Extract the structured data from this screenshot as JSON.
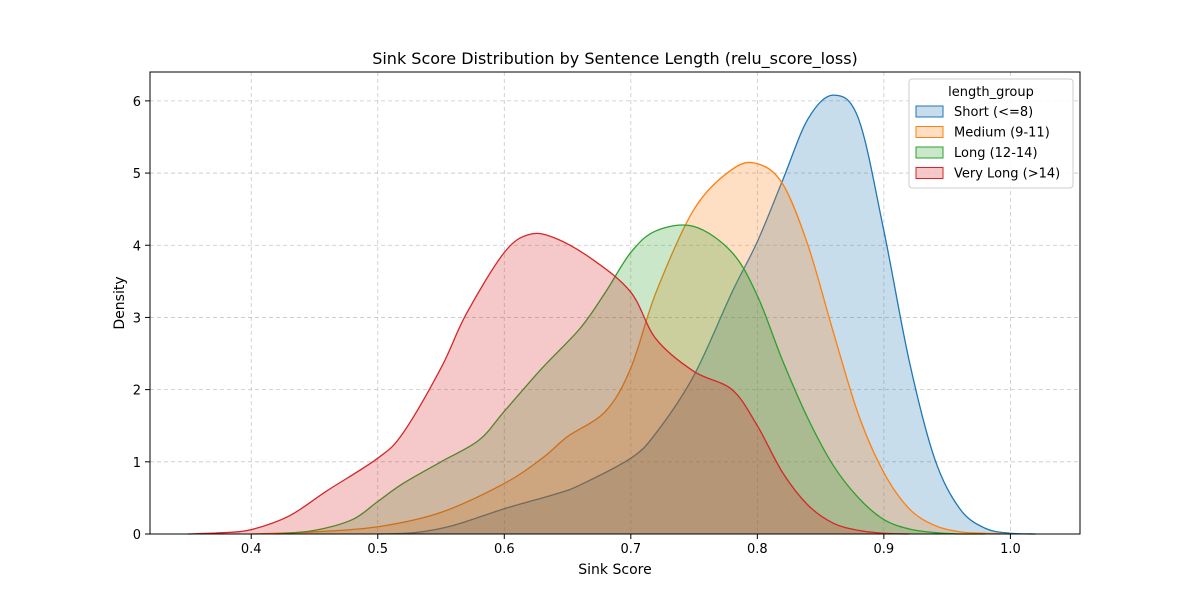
{
  "chart_data": {
    "type": "area",
    "title": "Sink Score Distribution by Sentence Length (relu_score_loss)",
    "xlabel": "Sink Score",
    "ylabel": "Density",
    "xlim": [
      0.32,
      1.055
    ],
    "ylim": [
      0,
      6.4
    ],
    "xticks": [
      "0.4",
      "0.5",
      "0.6",
      "0.7",
      "0.8",
      "0.9",
      "1.0"
    ],
    "yticks": [
      "0",
      "1",
      "2",
      "3",
      "4",
      "5",
      "6"
    ],
    "grid": true,
    "legend": {
      "title": "length_group",
      "placement": "top-right"
    },
    "series": [
      {
        "name": "Short (<=8)",
        "color": "#1f77b4",
        "x": [
          0.5,
          0.53,
          0.56,
          0.6,
          0.64,
          0.66,
          0.7,
          0.72,
          0.75,
          0.78,
          0.8,
          0.82,
          0.84,
          0.86,
          0.88,
          0.9,
          0.92,
          0.94,
          0.96,
          0.98,
          1.0,
          1.02
        ],
        "y": [
          0.0,
          0.02,
          0.12,
          0.35,
          0.55,
          0.68,
          1.05,
          1.4,
          2.2,
          3.35,
          4.05,
          4.9,
          5.75,
          6.08,
          5.75,
          4.2,
          2.4,
          1.05,
          0.35,
          0.08,
          0.01,
          0.0
        ]
      },
      {
        "name": "Medium (9-11)",
        "color": "#ff7f0e",
        "x": [
          0.4,
          0.45,
          0.5,
          0.55,
          0.6,
          0.63,
          0.65,
          0.68,
          0.7,
          0.72,
          0.75,
          0.78,
          0.8,
          0.82,
          0.84,
          0.86,
          0.88,
          0.9,
          0.92,
          0.94,
          0.96,
          0.98,
          1.0
        ],
        "y": [
          0.0,
          0.03,
          0.1,
          0.3,
          0.7,
          1.05,
          1.35,
          1.7,
          2.3,
          3.35,
          4.5,
          5.05,
          5.13,
          4.85,
          4.0,
          2.8,
          1.65,
          0.85,
          0.35,
          0.12,
          0.03,
          0.01,
          0.0
        ]
      },
      {
        "name": "Long (12-14)",
        "color": "#2ca02c",
        "x": [
          0.42,
          0.45,
          0.48,
          0.5,
          0.52,
          0.55,
          0.58,
          0.6,
          0.63,
          0.66,
          0.68,
          0.7,
          0.72,
          0.75,
          0.78,
          0.8,
          0.82,
          0.84,
          0.86,
          0.88,
          0.9,
          0.92,
          0.94,
          0.96,
          0.98
        ],
        "y": [
          0.0,
          0.05,
          0.2,
          0.45,
          0.7,
          1.0,
          1.3,
          1.7,
          2.3,
          2.85,
          3.35,
          3.9,
          4.2,
          4.26,
          3.9,
          3.3,
          2.4,
          1.6,
          0.95,
          0.5,
          0.2,
          0.07,
          0.02,
          0.0,
          0.0
        ]
      },
      {
        "name": "Very Long (>14)",
        "color": "#d62728",
        "x": [
          0.35,
          0.38,
          0.4,
          0.43,
          0.46,
          0.5,
          0.52,
          0.55,
          0.57,
          0.6,
          0.62,
          0.64,
          0.67,
          0.7,
          0.72,
          0.75,
          0.78,
          0.8,
          0.82,
          0.84,
          0.86,
          0.88,
          0.9,
          0.92
        ],
        "y": [
          0.0,
          0.02,
          0.06,
          0.25,
          0.6,
          1.05,
          1.4,
          2.3,
          3.05,
          3.9,
          4.15,
          4.1,
          3.8,
          3.35,
          2.7,
          2.25,
          2.0,
          1.5,
          0.85,
          0.4,
          0.15,
          0.05,
          0.01,
          0.0
        ]
      }
    ]
  }
}
